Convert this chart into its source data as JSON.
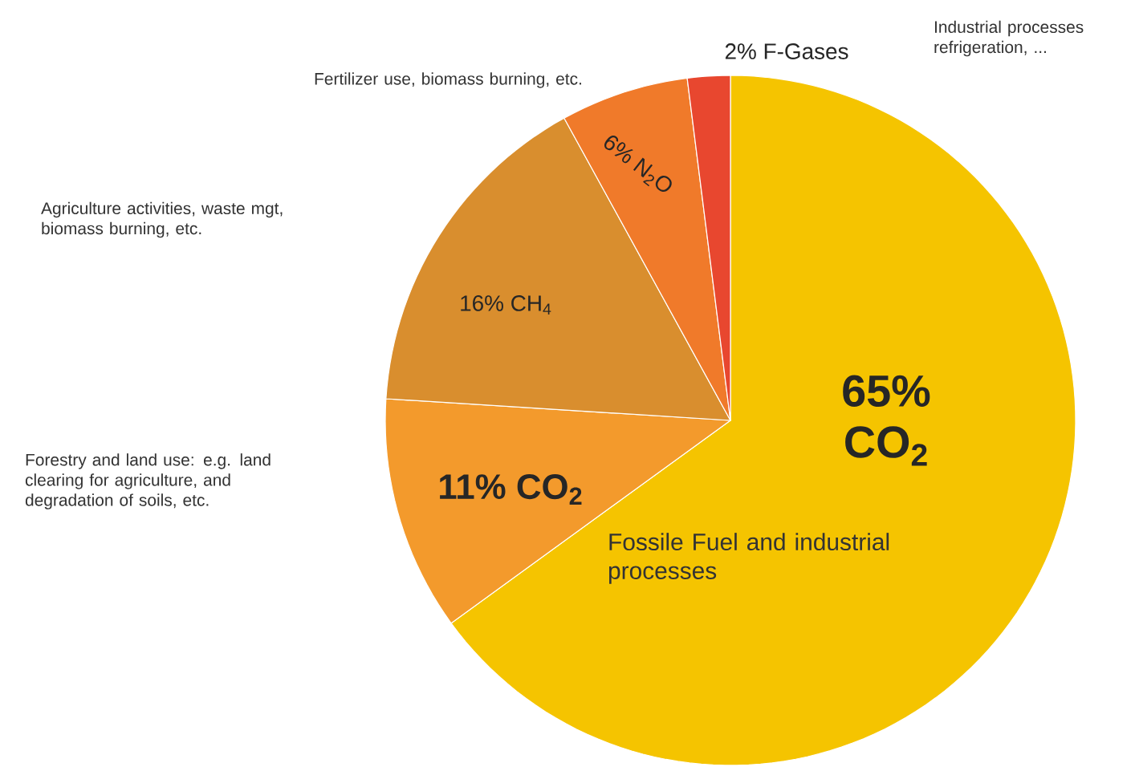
{
  "chart_data": {
    "type": "pie",
    "categories": [
      "CO$_{2}$",
      "CO$_{2}$",
      "CH$_{4}$",
      "N$_{2}$O",
      "F-Gases"
    ],
    "values": [
      65,
      11,
      16,
      6,
      2
    ],
    "value_labels": [
      "65%",
      "11%",
      "16%",
      "6%",
      "2%"
    ],
    "colors": [
      "#f5c400",
      "#f39a2c",
      "#d98e2e",
      "#f07a2a",
      "#e8472f"
    ],
    "annotations": [
      "Fossile Fuel and industrial processes",
      "Forestry and land use: e.g. land clearing for agriculture, and degradation of soils, etc.",
      "Agriculture activities, waste mgt, biomass burning, etc.",
      "Fertilizer use, biomass burning, etc.",
      "Industrial processes refrigeration, ..."
    ]
  }
}
